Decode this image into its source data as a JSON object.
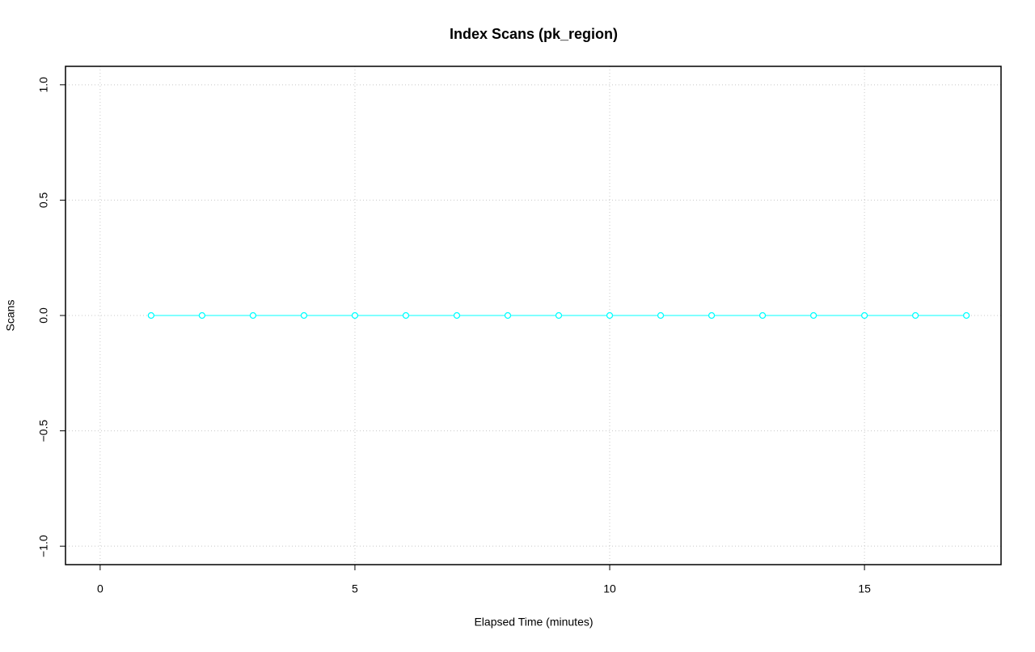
{
  "chart_data": {
    "type": "line",
    "title": "Index Scans (pk_region)",
    "x_label": "Elapsed Time (minutes)",
    "y_label": "Scans",
    "x": [
      1,
      2,
      3,
      4,
      5,
      6,
      7,
      8,
      9,
      10,
      11,
      12,
      13,
      14,
      15,
      16,
      17
    ],
    "series": [
      {
        "color": "#00ffff",
        "values": [
          0,
          0,
          0,
          0,
          0,
          0,
          0,
          0,
          0,
          0,
          0,
          0,
          0,
          0,
          0,
          0,
          0
        ]
      }
    ],
    "xlim": [
      -0.68,
      17.68
    ],
    "xticks": [
      0,
      5,
      10,
      15
    ],
    "ylim": [
      -1.08,
      1.08
    ],
    "yticks": [
      {
        "value": -1,
        "label": "−1.0"
      },
      {
        "value": -0.5,
        "label": "−0.5"
      },
      {
        "value": 0,
        "label": "0.0"
      },
      {
        "value": 0.5,
        "label": "0.5"
      },
      {
        "value": 1,
        "label": "1.0"
      }
    ],
    "grid": true
  }
}
